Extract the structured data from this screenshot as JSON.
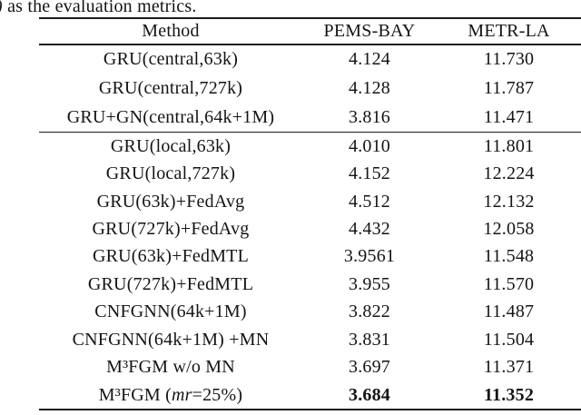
{
  "caption": {
    "fragment_italic": ")",
    "fragment_text": " as the evaluation metrics."
  },
  "table": {
    "headers": [
      "Method",
      "PEMS-BAY",
      "METR-LA"
    ],
    "groups": [
      {
        "rows": [
          {
            "method": "GRU(central,63k)",
            "pems": "4.124",
            "metr": "11.730",
            "bold": false
          },
          {
            "method": "GRU(central,727k)",
            "pems": "4.128",
            "metr": "11.787",
            "bold": false
          },
          {
            "method": "GRU+GN(central,64k+1M)",
            "pems": "3.816",
            "metr": "11.471",
            "bold": false
          }
        ]
      },
      {
        "rows": [
          {
            "method": "GRU(local,63k)",
            "pems": "4.010",
            "metr": "11.801",
            "bold": false
          },
          {
            "method": "GRU(local,727k)",
            "pems": "4.152",
            "metr": "12.224",
            "bold": false
          },
          {
            "method": "GRU(63k)+FedAvg",
            "pems": "4.512",
            "metr": "12.132",
            "bold": false
          },
          {
            "method": "GRU(727k)+FedAvg",
            "pems": "4.432",
            "metr": "12.058",
            "bold": false
          },
          {
            "method": "GRU(63k)+FedMTL",
            "pems": "3.9561",
            "metr": "11.548",
            "bold": false
          },
          {
            "method": "GRU(727k)+FedMTL",
            "pems": "3.955",
            "metr": "11.570",
            "bold": false
          },
          {
            "method": "CNFGNN(64k+1M)",
            "pems": "3.822",
            "metr": "11.487",
            "bold": false
          },
          {
            "method": "CNFGNN(64k+1M) +MN",
            "pems": "3.831",
            "metr": "11.504",
            "bold": false
          },
          {
            "method": "M³FGM w/o MN",
            "pems": "3.697",
            "metr": "11.371",
            "bold": false
          },
          {
            "method_pre": "M³FGM (",
            "method_italic": "mr",
            "method_post": "=25%)",
            "pems": "3.684",
            "metr": "11.352",
            "bold": true
          }
        ]
      }
    ]
  }
}
